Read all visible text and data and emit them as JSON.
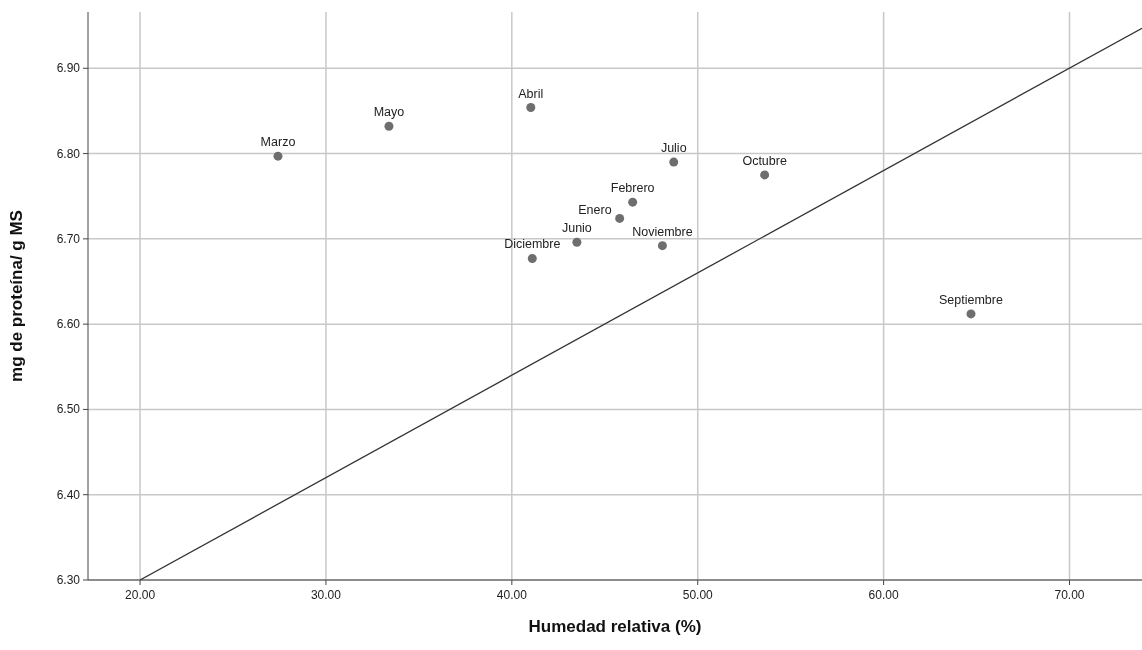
{
  "chart_data": {
    "type": "scatter",
    "xlabel": "Humedad relativa (%)",
    "ylabel": "mg de proteína/ g MS",
    "xlim": [
      17.2,
      73.9
    ],
    "ylim": [
      6.3,
      6.966
    ],
    "xticks": [
      {
        "value": 20,
        "label": "20.00"
      },
      {
        "value": 30,
        "label": "30.00"
      },
      {
        "value": 40,
        "label": "40.00"
      },
      {
        "value": 50,
        "label": "50.00"
      },
      {
        "value": 60,
        "label": "60.00"
      },
      {
        "value": 70,
        "label": "70.00"
      }
    ],
    "yticks": [
      {
        "value": 6.3,
        "label": "6.30"
      },
      {
        "value": 6.4,
        "label": "6.40"
      },
      {
        "value": 6.5,
        "label": "6.50"
      },
      {
        "value": 6.6,
        "label": "6.60"
      },
      {
        "value": 6.7,
        "label": "6.70"
      },
      {
        "value": 6.8,
        "label": "6.80"
      },
      {
        "value": 6.9,
        "label": "6.90"
      }
    ],
    "grid": true,
    "series": [
      {
        "marker": "circle",
        "color": "#6e6e6e",
        "x": [
          27.42,
          33.39,
          41.02,
          48.71,
          53.6,
          46.5,
          45.8,
          43.5,
          48.1,
          41.1,
          64.7
        ],
        "values": [
          6.797,
          6.832,
          6.854,
          6.79,
          6.775,
          6.743,
          6.724,
          6.696,
          6.692,
          6.677,
          6.612
        ]
      },
      {
        "type": "line",
        "marker": "none",
        "color": "#333333",
        "x": [
          20,
          73.9
        ],
        "values": [
          6.3,
          6.947
        ]
      }
    ],
    "annotations": [
      {
        "text": "Marzo",
        "x": 27.42,
        "y": 6.797
      },
      {
        "text": "Mayo",
        "x": 33.39,
        "y": 6.832
      },
      {
        "text": "Abril",
        "x": 41.02,
        "y": 6.854
      },
      {
        "text": "Julio",
        "x": 48.71,
        "y": 6.79
      },
      {
        "text": "Octubre",
        "x": 53.6,
        "y": 6.775
      },
      {
        "text": "Febrero",
        "x": 46.5,
        "y": 6.743
      },
      {
        "text": "Enero",
        "x": 45.8,
        "y": 6.724
      },
      {
        "text": "Junio",
        "x": 43.5,
        "y": 6.696
      },
      {
        "text": "Noviembre",
        "x": 48.1,
        "y": 6.692
      },
      {
        "text": "Diciembre",
        "x": 41.1,
        "y": 6.677
      },
      {
        "text": "Septiembre",
        "x": 64.7,
        "y": 6.612
      }
    ]
  }
}
